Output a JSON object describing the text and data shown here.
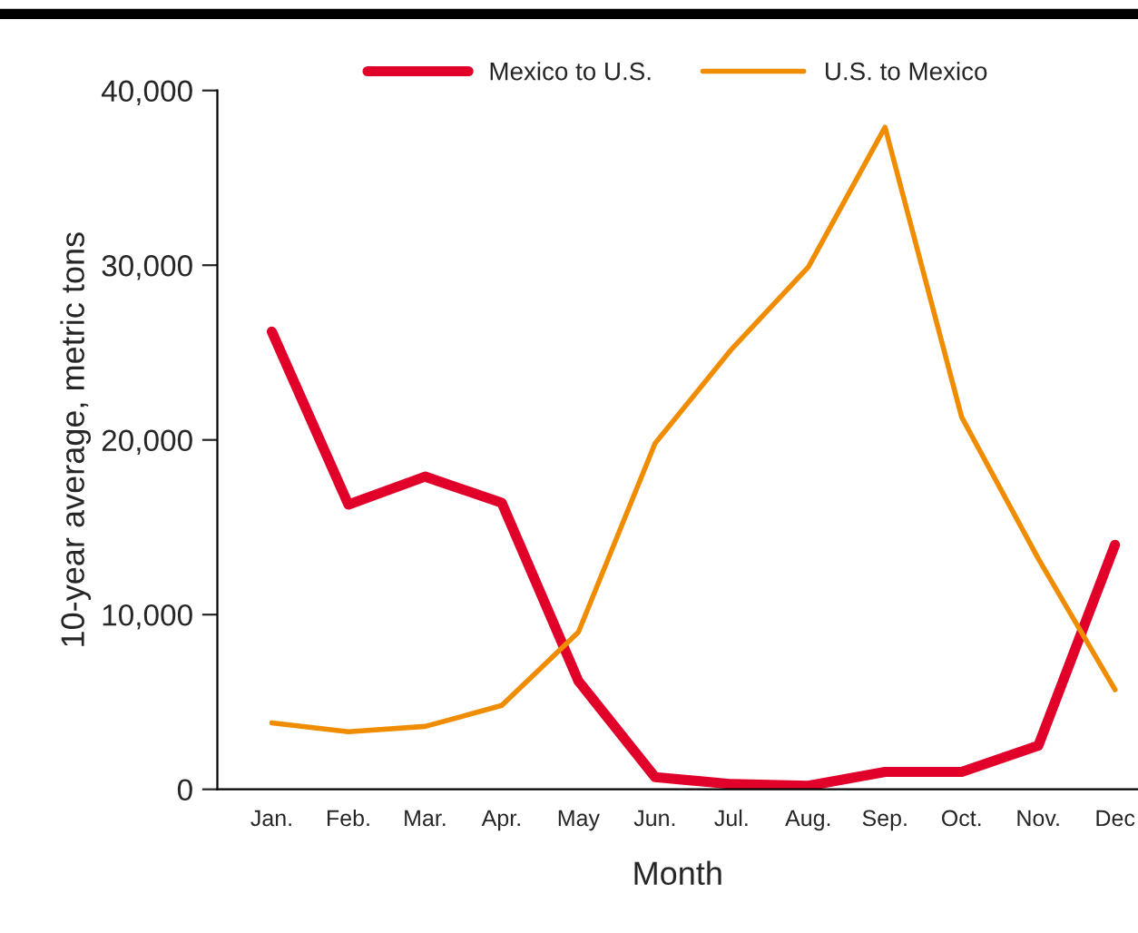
{
  "chart_data": {
    "type": "line",
    "xlabel": "Month",
    "ylabel": "10-year average, metric tons",
    "categories": [
      "Jan.",
      "Feb.",
      "Mar.",
      "Apr.",
      "May",
      "Jun.",
      "Jul.",
      "Aug.",
      "Sep.",
      "Oct.",
      "Nov.",
      "Dec"
    ],
    "series": [
      {
        "name": "Mexico to U.S.",
        "color": "#e0002a",
        "values": [
          26200,
          16300,
          17900,
          16400,
          6200,
          700,
          300,
          200,
          1000,
          1000,
          2500,
          14000
        ]
      },
      {
        "name": "U.S. to Mexico",
        "color": "#f08c00",
        "values": [
          3800,
          3300,
          3600,
          4800,
          9000,
          19800,
          25200,
          29900,
          37900,
          21300,
          13200,
          5700
        ]
      }
    ],
    "ylim": [
      0,
      40000
    ],
    "yticks": [
      {
        "value": 0,
        "label": "0"
      },
      {
        "value": 10000,
        "label": "10,000"
      },
      {
        "value": 20000,
        "label": "20,000"
      },
      {
        "value": 30000,
        "label": "30,000"
      },
      {
        "value": 40000,
        "label": "40,000"
      }
    ],
    "grid": false,
    "legend": "top",
    "marker": "none",
    "line_style": "solid"
  }
}
